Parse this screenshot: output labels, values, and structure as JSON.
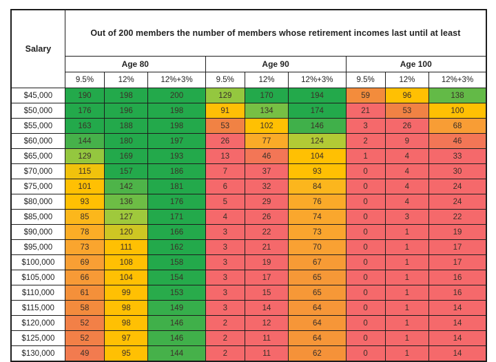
{
  "table": {
    "corner_label": "Salary",
    "title": "Out of 200 members the number of members whose retirement incomes last until at least",
    "age_group_labels": [
      "Age 80",
      "Age 90",
      "Age 100"
    ],
    "rate_labels": [
      "9.5%",
      "12%",
      "12%+3%"
    ],
    "border_color": "#1c1c1c"
  },
  "heatmap": {
    "text_color": "#3a2f28",
    "low_color": "#F5696B",
    "mid_color": "#FFC003",
    "high_color": "#23A94B",
    "stops": [
      [
        0,
        "#F5696B"
      ],
      [
        38,
        "#F5696B"
      ],
      [
        55,
        "#F1853F"
      ],
      [
        70,
        "#F9A133"
      ],
      [
        85,
        "#FCB71B"
      ],
      [
        92,
        "#FFC003"
      ],
      [
        113,
        "#FFC003"
      ],
      [
        125,
        "#ABCB3A"
      ],
      [
        133,
        "#7CC243"
      ],
      [
        143,
        "#49B24A"
      ],
      [
        155,
        "#23A94B"
      ],
      [
        200,
        "#23A94B"
      ]
    ]
  },
  "chart_data": {
    "type": "heatmap",
    "title": "Out of 200 members the number of members whose retirement incomes last until at least",
    "row_header": "Salary",
    "column_groups": [
      "Age 80",
      "Age 90",
      "Age 100"
    ],
    "sub_columns_per_group": [
      "9.5%",
      "12%",
      "12%+3%"
    ],
    "value_range": [
      0,
      200
    ],
    "rows": [
      {
        "salary": "$45,000",
        "values": [
          190,
          198,
          200,
          129,
          170,
          194,
          59,
          96,
          138
        ]
      },
      {
        "salary": "$50,000",
        "values": [
          176,
          196,
          198,
          91,
          134,
          174,
          21,
          53,
          100
        ]
      },
      {
        "salary": "$55,000",
        "values": [
          163,
          188,
          198,
          53,
          102,
          146,
          3,
          26,
          68
        ]
      },
      {
        "salary": "$60,000",
        "values": [
          144,
          180,
          197,
          26,
          77,
          124,
          2,
          9,
          46
        ]
      },
      {
        "salary": "$65,000",
        "values": [
          129,
          169,
          193,
          13,
          46,
          104,
          1,
          4,
          33
        ]
      },
      {
        "salary": "$70,000",
        "values": [
          115,
          157,
          186,
          7,
          37,
          93,
          0,
          4,
          30
        ]
      },
      {
        "salary": "$75,000",
        "values": [
          101,
          142,
          181,
          6,
          32,
          84,
          0,
          4,
          24
        ]
      },
      {
        "salary": "$80,000",
        "values": [
          93,
          136,
          176,
          5,
          29,
          76,
          0,
          4,
          24
        ]
      },
      {
        "salary": "$85,000",
        "values": [
          85,
          127,
          171,
          4,
          26,
          74,
          0,
          3,
          22
        ]
      },
      {
        "salary": "$90,000",
        "values": [
          78,
          120,
          166,
          3,
          22,
          73,
          0,
          1,
          19
        ]
      },
      {
        "salary": "$95,000",
        "values": [
          73,
          111,
          162,
          3,
          21,
          70,
          0,
          1,
          17
        ]
      },
      {
        "salary": "$100,000",
        "values": [
          69,
          108,
          158,
          3,
          19,
          67,
          0,
          1,
          17
        ]
      },
      {
        "salary": "$105,000",
        "values": [
          66,
          104,
          154,
          3,
          17,
          65,
          0,
          1,
          16
        ]
      },
      {
        "salary": "$110,000",
        "values": [
          61,
          99,
          153,
          3,
          15,
          65,
          0,
          1,
          16
        ]
      },
      {
        "salary": "$115,000",
        "values": [
          58,
          98,
          149,
          3,
          14,
          64,
          0,
          1,
          14
        ]
      },
      {
        "salary": "$120,000",
        "values": [
          52,
          98,
          146,
          2,
          12,
          64,
          0,
          1,
          14
        ]
      },
      {
        "salary": "$125,000",
        "values": [
          52,
          97,
          146,
          2,
          11,
          64,
          0,
          1,
          14
        ]
      },
      {
        "salary": "$130,000",
        "values": [
          49,
          95,
          144,
          2,
          11,
          62,
          0,
          1,
          14
        ]
      }
    ]
  }
}
